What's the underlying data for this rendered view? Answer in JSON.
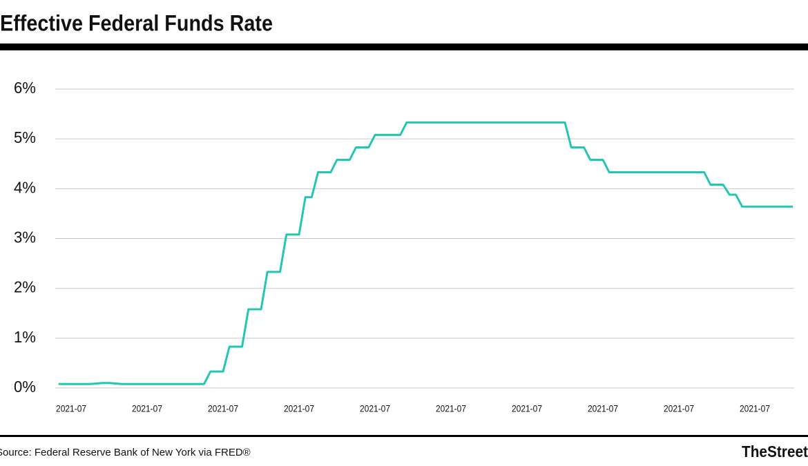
{
  "chart_data": {
    "type": "line",
    "title": "Effective Federal Funds Rate",
    "source": "Source: Federal Reserve Bank of New York via FRED®",
    "brand": "TheStreet",
    "categories": [
      null,
      null,
      "2021-07",
      null,
      null,
      null,
      null,
      null,
      null,
      null,
      null,
      null,
      null,
      null,
      "2021-07",
      null,
      null,
      null,
      null,
      null,
      null,
      null,
      null,
      null,
      null,
      null,
      "2021-07",
      null,
      null,
      null,
      null,
      null,
      null,
      null,
      null,
      null,
      null,
      null,
      "2021-07",
      null,
      null,
      null,
      null,
      null,
      null,
      null,
      null,
      null,
      null,
      null,
      "2021-07",
      null,
      null,
      null,
      null,
      null,
      null,
      null,
      null,
      null,
      null,
      null,
      "2021-07",
      null,
      null,
      null,
      null,
      null,
      null,
      null,
      null,
      null,
      null,
      null,
      "2021-07",
      null,
      null,
      null,
      null,
      null,
      null,
      null,
      null,
      null,
      null,
      null,
      "2021-07",
      null,
      null,
      null,
      null,
      null,
      null,
      null,
      null,
      null,
      null,
      null,
      "2021-07",
      null,
      null,
      null,
      null,
      null,
      null,
      null,
      null,
      null,
      null,
      null,
      "2021-07",
      null,
      null,
      null,
      null,
      null,
      null
    ],
    "series": [
      {
        "color": "#22c7b3",
        "values": [
          0.08,
          0.08,
          0.08,
          0.08,
          0.08,
          0.08,
          0.09,
          0.1,
          0.1,
          0.09,
          0.08,
          0.08,
          0.08,
          0.08,
          0.08,
          0.08,
          0.08,
          0.08,
          0.08,
          0.08,
          0.08,
          0.08,
          0.08,
          0.08,
          0.33,
          0.33,
          0.33,
          0.83,
          0.83,
          0.83,
          1.58,
          1.58,
          1.58,
          2.33,
          2.33,
          2.33,
          3.08,
          3.08,
          3.08,
          3.83,
          3.83,
          4.33,
          4.33,
          4.33,
          4.58,
          4.58,
          4.58,
          4.83,
          4.83,
          4.83,
          5.08,
          5.08,
          5.08,
          5.08,
          5.08,
          5.33,
          5.33,
          5.33,
          5.33,
          5.33,
          5.33,
          5.33,
          5.33,
          5.33,
          5.33,
          5.33,
          5.33,
          5.33,
          5.33,
          5.33,
          5.33,
          5.33,
          5.33,
          5.33,
          5.33,
          5.33,
          5.33,
          5.33,
          5.33,
          5.33,
          5.33,
          4.83,
          4.83,
          4.83,
          4.58,
          4.58,
          4.58,
          4.33,
          4.33,
          4.33,
          4.33,
          4.33,
          4.33,
          4.33,
          4.33,
          4.33,
          4.33,
          4.33,
          4.33,
          4.33,
          4.33,
          4.33,
          4.33,
          4.08,
          4.08,
          4.08,
          3.88,
          3.88,
          3.64,
          3.64,
          3.64,
          3.64,
          3.64,
          3.64,
          3.64,
          3.64,
          3.64
        ]
      }
    ],
    "ylim": [
      0,
      6
    ],
    "yticks": [
      {
        "value": 0,
        "label": "0%"
      },
      {
        "value": 1,
        "label": "1%"
      },
      {
        "value": 2,
        "label": "2%"
      },
      {
        "value": 3,
        "label": "3%"
      },
      {
        "value": 4,
        "label": "4%"
      },
      {
        "value": 5,
        "label": "5%"
      },
      {
        "value": 6,
        "label": "6%"
      }
    ],
    "grid": true
  }
}
